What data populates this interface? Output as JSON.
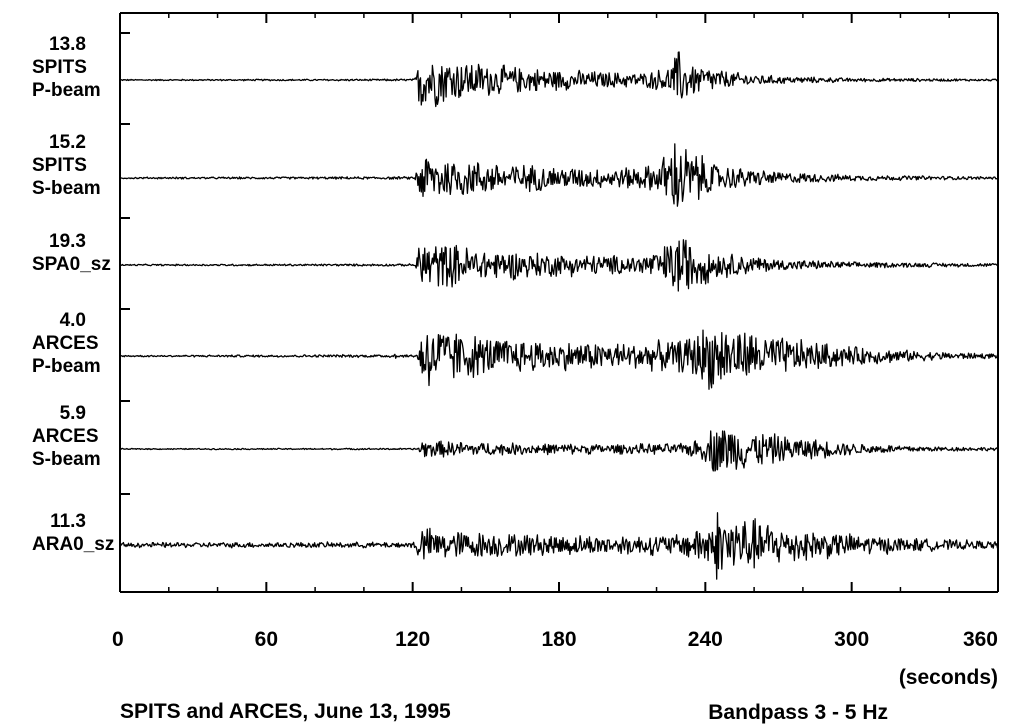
{
  "chart_data": {
    "type": "line",
    "x_unit_label": "(seconds)",
    "xlim": [
      0,
      360
    ],
    "x_ticks": [
      0,
      60,
      120,
      180,
      240,
      300,
      360
    ],
    "caption_left": "SPITS and ARCES, June 13, 1995",
    "caption_right": "Bandpass 3 - 5 Hz",
    "traces": [
      {
        "amplitude": "13.8",
        "station": "SPITS",
        "channel": "P-beam",
        "envelope": [
          [
            0,
            0.02
          ],
          [
            112,
            0.03
          ],
          [
            121,
            0.04
          ],
          [
            123,
            1.0
          ],
          [
            128,
            0.85
          ],
          [
            140,
            0.62
          ],
          [
            160,
            0.42
          ],
          [
            180,
            0.32
          ],
          [
            200,
            0.25
          ],
          [
            215,
            0.22
          ],
          [
            225,
            0.4
          ],
          [
            229,
            0.95
          ],
          [
            233,
            0.55
          ],
          [
            250,
            0.25
          ],
          [
            270,
            0.12
          ],
          [
            300,
            0.06
          ],
          [
            360,
            0.03
          ]
        ]
      },
      {
        "amplitude": "15.2",
        "station": "SPITS",
        "channel": "S-beam",
        "envelope": [
          [
            0,
            0.02
          ],
          [
            121,
            0.03
          ],
          [
            123,
            0.62
          ],
          [
            130,
            0.52
          ],
          [
            150,
            0.38
          ],
          [
            180,
            0.26
          ],
          [
            200,
            0.22
          ],
          [
            220,
            0.3
          ],
          [
            229,
            1.0
          ],
          [
            233,
            0.7
          ],
          [
            245,
            0.3
          ],
          [
            270,
            0.14
          ],
          [
            300,
            0.07
          ],
          [
            360,
            0.03
          ]
        ]
      },
      {
        "amplitude": "19.3",
        "station": "SPA0_sz",
        "channel": "",
        "envelope": [
          [
            0,
            0.02
          ],
          [
            121,
            0.03
          ],
          [
            123,
            0.72
          ],
          [
            130,
            0.62
          ],
          [
            150,
            0.42
          ],
          [
            180,
            0.3
          ],
          [
            210,
            0.24
          ],
          [
            222,
            0.4
          ],
          [
            229,
            0.95
          ],
          [
            233,
            0.7
          ],
          [
            245,
            0.35
          ],
          [
            270,
            0.15
          ],
          [
            300,
            0.08
          ],
          [
            360,
            0.04
          ]
        ]
      },
      {
        "amplitude": "4.0",
        "station": "ARCES",
        "channel": "P-beam",
        "envelope": [
          [
            0,
            0.02
          ],
          [
            112,
            0.04
          ],
          [
            113,
            0.18
          ],
          [
            114,
            0.03
          ],
          [
            122,
            0.04
          ],
          [
            124,
            1.0
          ],
          [
            130,
            0.8
          ],
          [
            150,
            0.5
          ],
          [
            180,
            0.38
          ],
          [
            210,
            0.35
          ],
          [
            230,
            0.42
          ],
          [
            243,
            0.92
          ],
          [
            250,
            0.75
          ],
          [
            270,
            0.5
          ],
          [
            300,
            0.25
          ],
          [
            330,
            0.12
          ],
          [
            360,
            0.06
          ]
        ]
      },
      {
        "amplitude": "5.9",
        "station": "ARCES",
        "channel": "S-beam",
        "envelope": [
          [
            0,
            0.02
          ],
          [
            122,
            0.03
          ],
          [
            124,
            0.35
          ],
          [
            130,
            0.3
          ],
          [
            160,
            0.22
          ],
          [
            200,
            0.18
          ],
          [
            230,
            0.2
          ],
          [
            240,
            0.45
          ],
          [
            244,
            1.0
          ],
          [
            255,
            0.75
          ],
          [
            275,
            0.45
          ],
          [
            300,
            0.22
          ],
          [
            330,
            0.1
          ],
          [
            360,
            0.06
          ]
        ]
      },
      {
        "amplitude": "11.3",
        "station": "ARA0_sz",
        "channel": "",
        "envelope": [
          [
            0,
            0.07
          ],
          [
            120,
            0.08
          ],
          [
            123,
            0.5
          ],
          [
            130,
            0.42
          ],
          [
            160,
            0.32
          ],
          [
            200,
            0.26
          ],
          [
            230,
            0.3
          ],
          [
            240,
            0.6
          ],
          [
            245,
            1.0
          ],
          [
            255,
            0.8
          ],
          [
            275,
            0.5
          ],
          [
            300,
            0.3
          ],
          [
            330,
            0.17
          ],
          [
            360,
            0.1
          ]
        ]
      }
    ]
  }
}
